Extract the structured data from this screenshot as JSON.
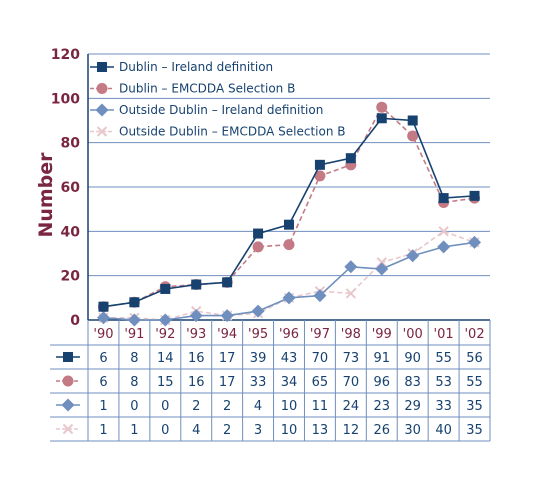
{
  "chart_data": {
    "type": "line",
    "ylabel": "Number",
    "xlabel": "",
    "ylim": [
      0,
      120
    ],
    "yticks": [
      0,
      20,
      40,
      60,
      80,
      100,
      120
    ],
    "grid": true,
    "legend_position": "top-left",
    "categories": [
      "'90",
      "'91",
      "'92",
      "'93",
      "'94",
      "'95",
      "'96",
      "'97",
      "'98",
      "'99",
      "'00",
      "'01",
      "'02"
    ],
    "series": [
      {
        "name": "Dublin – Ireland definition",
        "values": [
          6,
          8,
          14,
          16,
          17,
          39,
          43,
          70,
          73,
          91,
          90,
          55,
          56
        ],
        "color": "#17426f",
        "marker": "square",
        "dashed": false
      },
      {
        "name": "Dublin – EMCDDA Selection B",
        "values": [
          6,
          8,
          15,
          16,
          17,
          33,
          34,
          65,
          70,
          96,
          83,
          53,
          55
        ],
        "color": "#c47a85",
        "marker": "circle",
        "dashed": true
      },
      {
        "name": "Outside Dublin – Ireland definition",
        "values": [
          1,
          0,
          0,
          2,
          2,
          4,
          10,
          11,
          24,
          23,
          29,
          33,
          35
        ],
        "color": "#6f8fbf",
        "marker": "diamond",
        "dashed": false
      },
      {
        "name": "Outside Dublin – EMCDDA Selection B",
        "values": [
          1,
          1,
          0,
          4,
          2,
          3,
          10,
          13,
          12,
          26,
          30,
          40,
          35
        ],
        "color": "#e8c7cc",
        "marker": "cross",
        "dashed": true
      }
    ]
  }
}
